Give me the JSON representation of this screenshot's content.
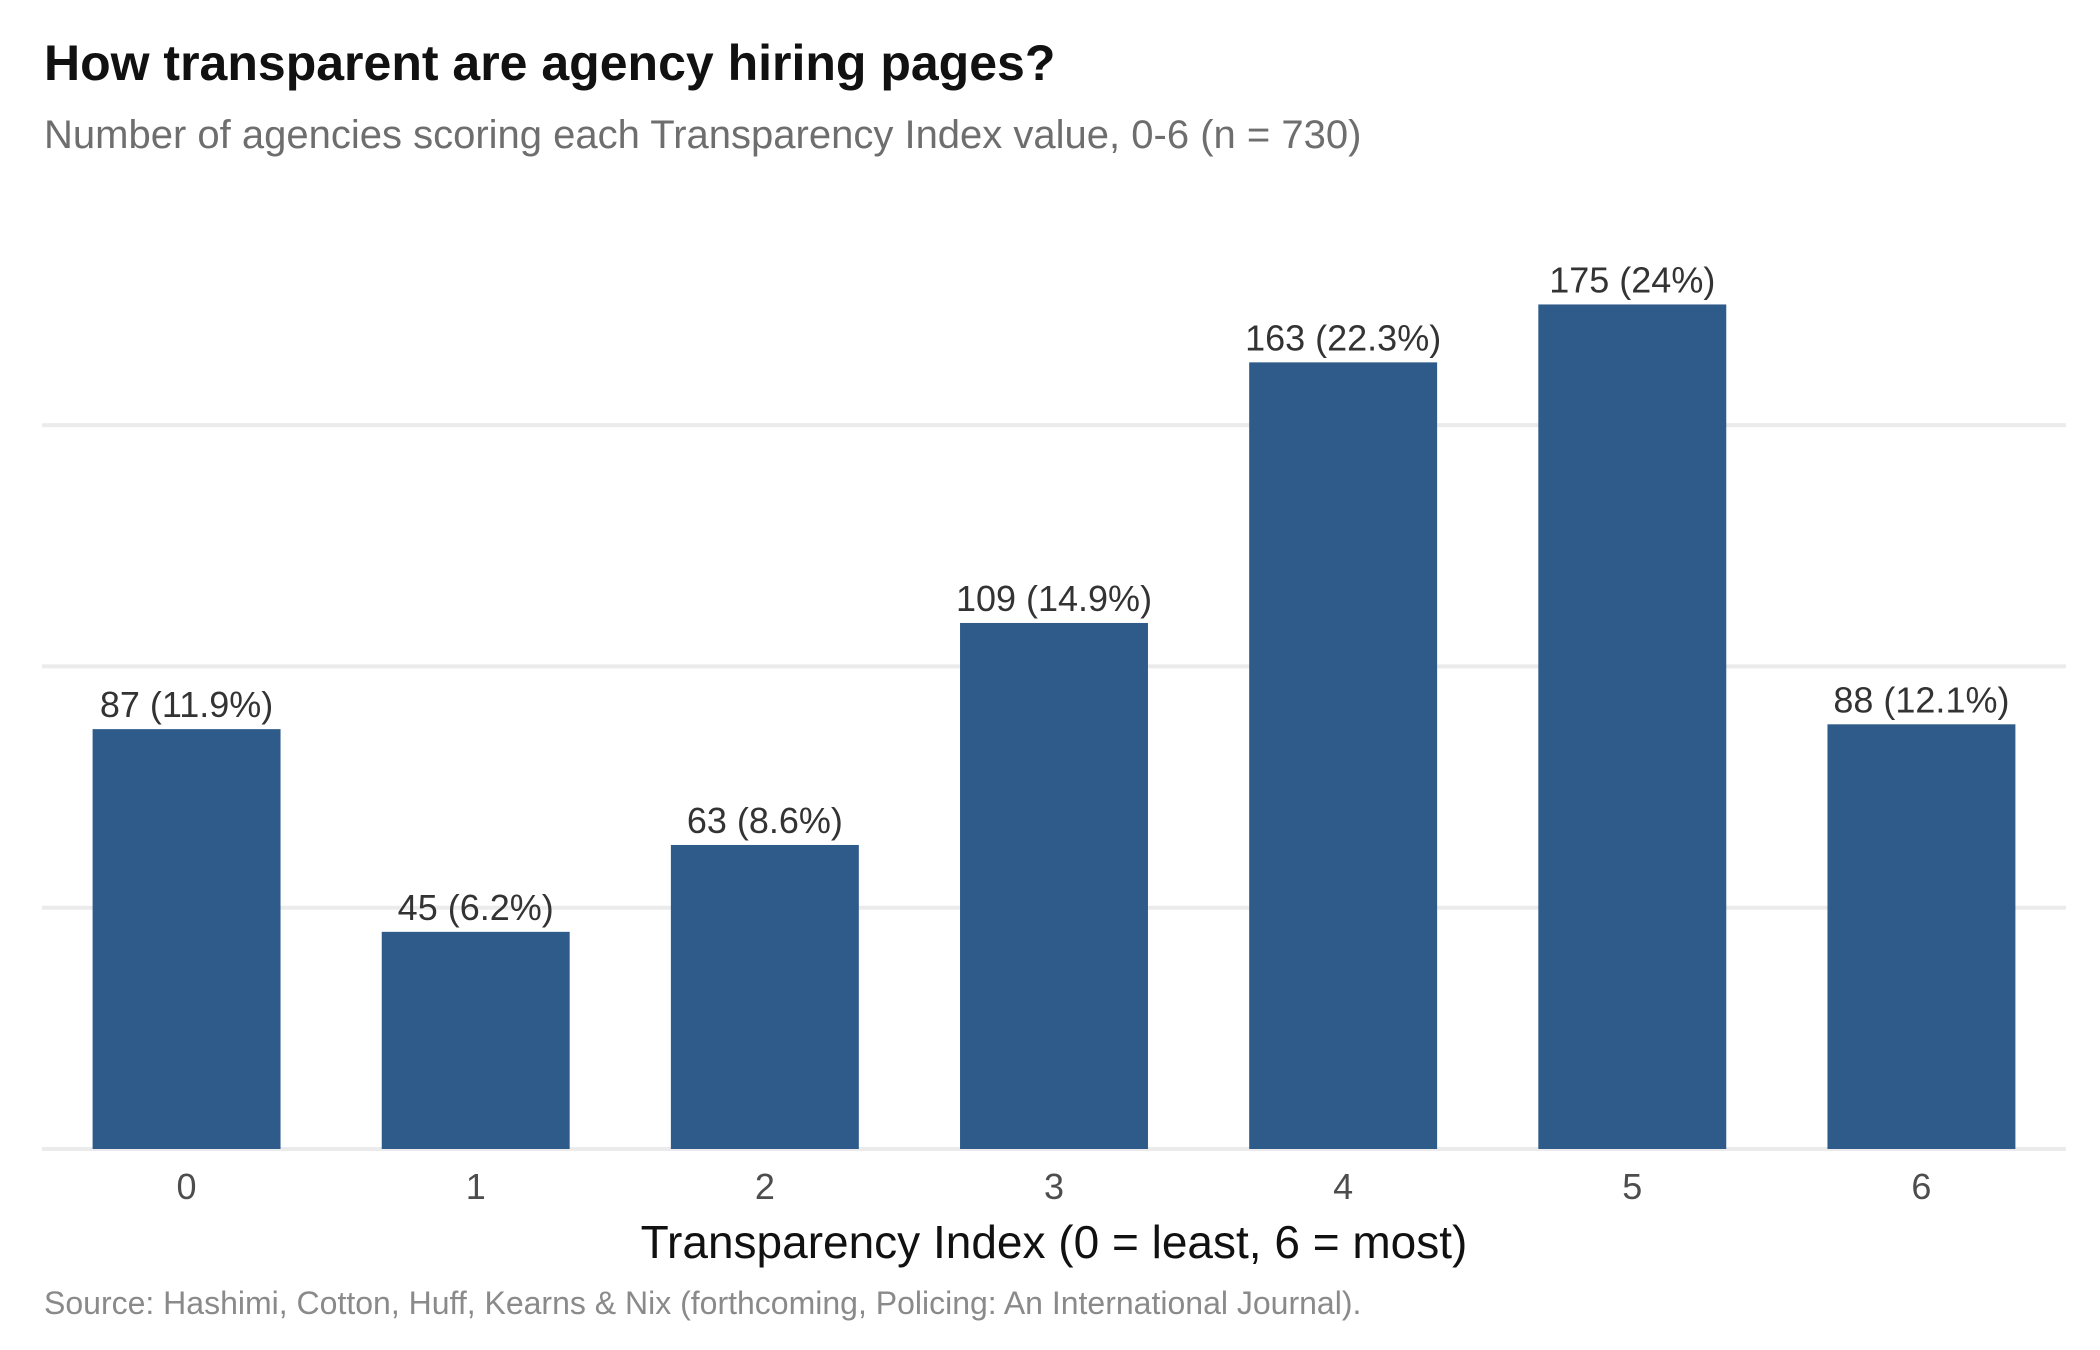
{
  "title": "How transparent are agency hiring pages?",
  "subtitle": "Number of agencies scoring each Transparency Index value, 0-6 (n = 730)",
  "caption": "Source: Hashimi, Cotton, Huff, Kearns & Nix (forthcoming, Policing: An International Journal).",
  "colors": {
    "bar": "#2e5b8a",
    "grid": "#ebebeb"
  },
  "chart_data": {
    "type": "bar",
    "categories": [
      "0",
      "1",
      "2",
      "3",
      "4",
      "5",
      "6"
    ],
    "values": [
      87,
      45,
      63,
      109,
      163,
      175,
      88
    ],
    "data_labels": [
      "87 (11.9%)",
      "45 (6.2%)",
      "63 (8.6%)",
      "109 (14.9%)",
      "163 (22.3%)",
      "175 (24%)",
      "88 (12.1%)"
    ],
    "xlabel": "Transparency Index (0 = least, 6 = most)",
    "ylabel": "",
    "ylim": [
      0,
      185
    ],
    "y_gridlines": [
      0,
      50,
      100,
      150
    ],
    "y_tick_labels_shown": false,
    "grid": true,
    "legend": "none"
  }
}
